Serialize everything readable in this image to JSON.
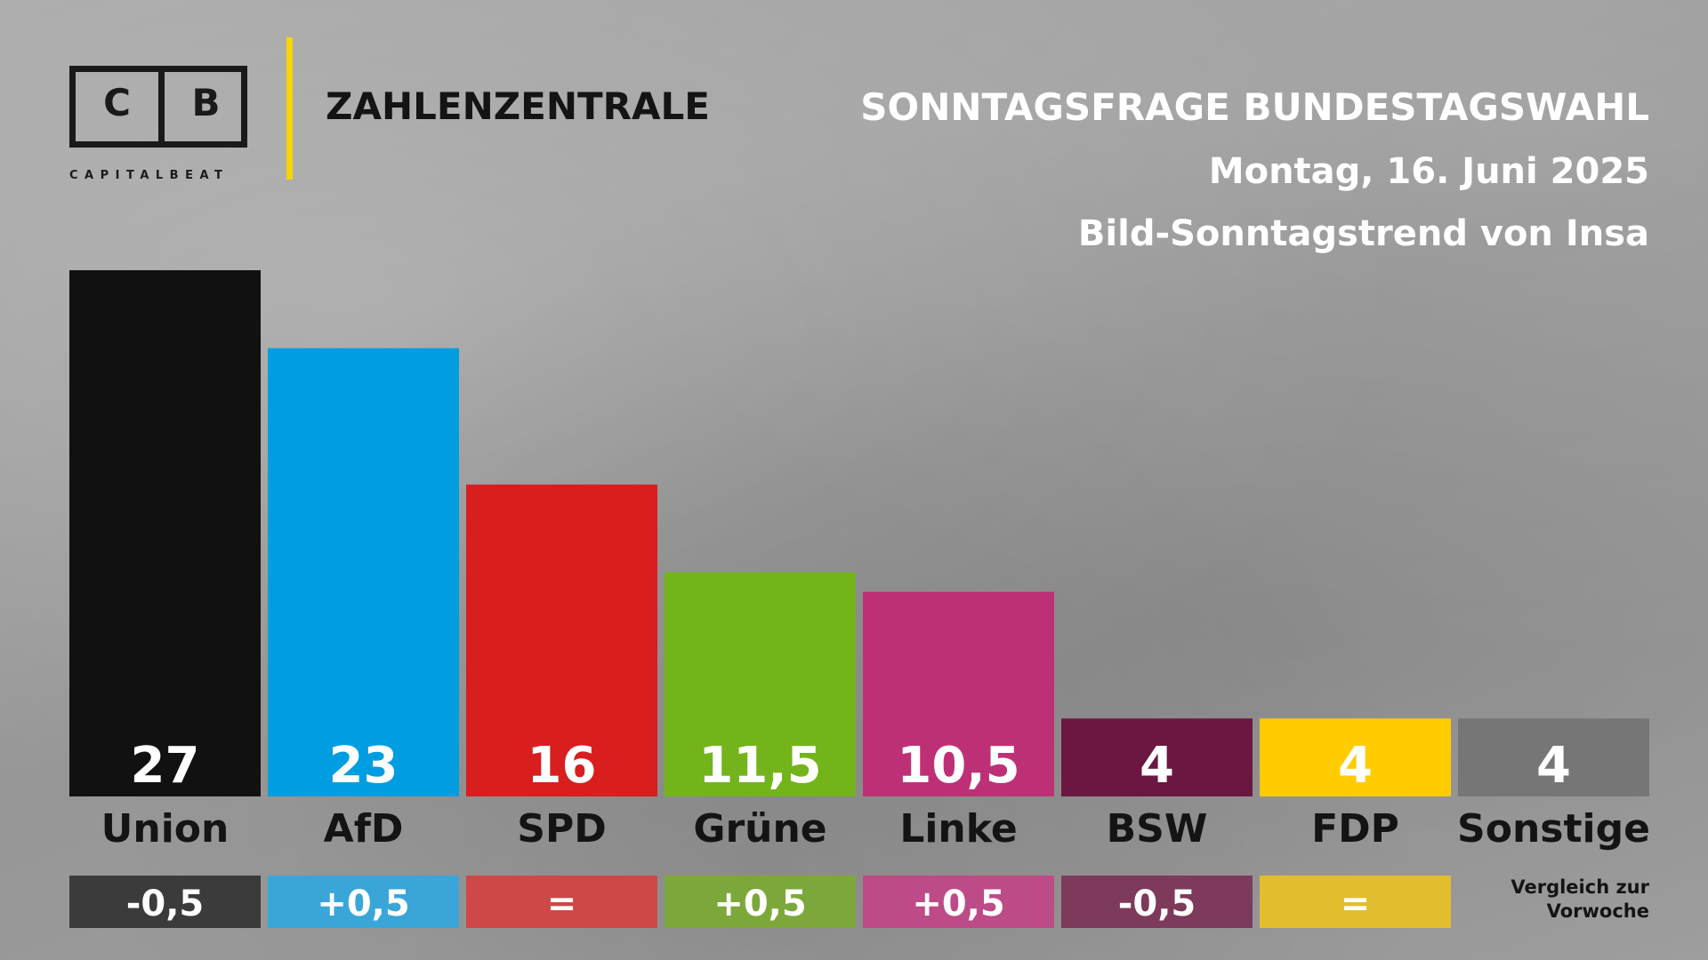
{
  "brand": {
    "logo_left": "C",
    "logo_right": "B",
    "logo_sub": "CAPITALBEAT",
    "section": "ZAHLENZENTRALE",
    "accent_color": "#f4d600"
  },
  "header": {
    "title": "SONNTAGSFRAGE BUNDESTAGSWAHL",
    "date": "Montag, 16. Juni 2025",
    "source": "Bild-Sonntagstrend von Insa"
  },
  "chart_data": {
    "type": "bar",
    "categories": [
      "Union",
      "AfD",
      "SPD",
      "Grüne",
      "Linke",
      "BSW",
      "FDP",
      "Sonstige"
    ],
    "values": [
      27,
      23,
      16,
      11.5,
      10.5,
      4,
      4,
      4
    ],
    "value_labels": [
      "27",
      "23",
      "16",
      "11,5",
      "10,5",
      "4",
      "4",
      "4"
    ],
    "colors": [
      "#111111",
      "#009ee0",
      "#d81e1e",
      "#73b41a",
      "#be3076",
      "#6a1841",
      "#ffcc00",
      "#767676"
    ],
    "changes": [
      "-0,5",
      "+0,5",
      "=",
      "+0,5",
      "+0,5",
      "-0,5",
      "="
    ],
    "change_colors": [
      "#3b3b3b",
      "#3aa6d8",
      "#cf4848",
      "#7ca83b",
      "#bc4b88",
      "#7d3a5b",
      "#e2bd2e"
    ],
    "ylim": [
      0,
      27
    ]
  },
  "footnote": {
    "line1": "Vergleich zur",
    "line2": "Vorwoche"
  }
}
